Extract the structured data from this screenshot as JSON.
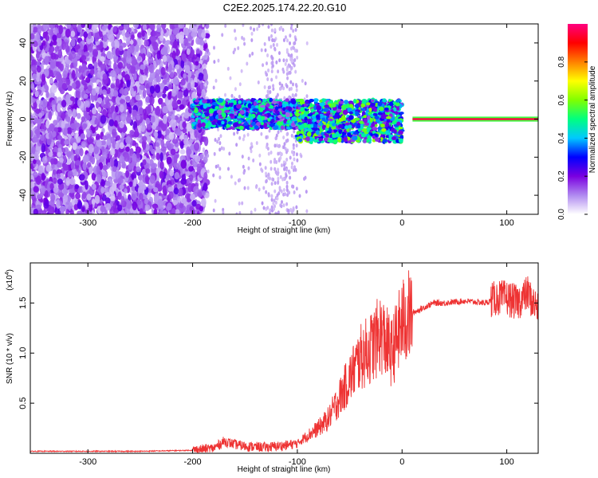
{
  "title": "C2E2.2025.174.22.20.G10",
  "chart_data": [
    {
      "type": "heatmap",
      "xlabel": "Height of straight line (km)",
      "ylabel": "Frequency (Hz)",
      "xlim": [
        -355,
        130
      ],
      "ylim": [
        -50,
        50
      ],
      "x_ticks": [
        -300,
        -200,
        -100,
        0,
        100
      ],
      "y_ticks": [
        -40,
        -20,
        0,
        20,
        40
      ],
      "x_tick_labels": [
        "-300",
        "-200",
        "-100",
        "0",
        "100"
      ],
      "y_tick_labels": [
        "-40",
        "-20",
        "0",
        "20",
        "40"
      ],
      "colorbar": {
        "label": "Normalized spectral amplitude",
        "range": [
          0,
          1
        ],
        "ticks": [
          0.0,
          0.2,
          0.4,
          0.6,
          0.8
        ],
        "tick_labels": [
          "0.0",
          "0.2",
          "0.4",
          "0.6",
          "0.8"
        ],
        "colors": [
          "#ffffff",
          "#b08af0",
          "#7a00e0",
          "#0000ff",
          "#00c8ff",
          "#00ff80",
          "#80ff00",
          "#ffff00",
          "#ff8000",
          "#ff0000",
          "#ff0080"
        ]
      },
      "regions": [
        {
          "x": [
            -355,
            -200
          ],
          "freq": [
            -50,
            50
          ],
          "amplitude": 0.12,
          "pattern": "broadband noise"
        },
        {
          "x": [
            -200,
            -100
          ],
          "freq": [
            -5,
            10
          ],
          "amplitude": 0.3,
          "pattern": "scattered band"
        },
        {
          "x": [
            -100,
            0
          ],
          "freq": [
            -12,
            10
          ],
          "amplitude": 0.35,
          "pattern": "scattered band"
        },
        {
          "x": [
            10,
            130
          ],
          "freq": [
            0,
            0
          ],
          "amplitude": 0.95,
          "pattern": "narrow line at 0 Hz"
        }
      ]
    },
    {
      "type": "line",
      "xlabel": "Height of straight line (km)",
      "ylabel": "SNR (10 * v/v)",
      "y_scale_label": "(x10",
      "y_scale_exp": "4",
      "xlim": [
        -355,
        130
      ],
      "ylim": [
        0,
        1.9
      ],
      "x_ticks": [
        -300,
        -200,
        -100,
        0,
        100
      ],
      "y_ticks": [
        0.5,
        1.0,
        1.5
      ],
      "x_tick_labels": [
        "-300",
        "-200",
        "-100",
        "0",
        "100"
      ],
      "y_tick_labels": [
        "0.5",
        "1.0",
        "1.5"
      ],
      "color": "#ee3333",
      "x": [
        -355,
        -300,
        -250,
        -200,
        -180,
        -170,
        -160,
        -150,
        -130,
        -110,
        -100,
        -90,
        -80,
        -70,
        -60,
        -50,
        -40,
        -30,
        -20,
        -10,
        0,
        10,
        20,
        30,
        40,
        60,
        80,
        90,
        100,
        110,
        120,
        125,
        130
      ],
      "y": [
        0.02,
        0.02,
        0.02,
        0.03,
        0.05,
        0.12,
        0.09,
        0.07,
        0.06,
        0.08,
        0.1,
        0.18,
        0.25,
        0.35,
        0.55,
        0.75,
        0.95,
        1.05,
        1.2,
        1.0,
        1.3,
        1.4,
        1.45,
        1.5,
        1.5,
        1.52,
        1.5,
        1.55,
        1.55,
        1.5,
        1.6,
        1.5,
        1.45
      ]
    }
  ]
}
